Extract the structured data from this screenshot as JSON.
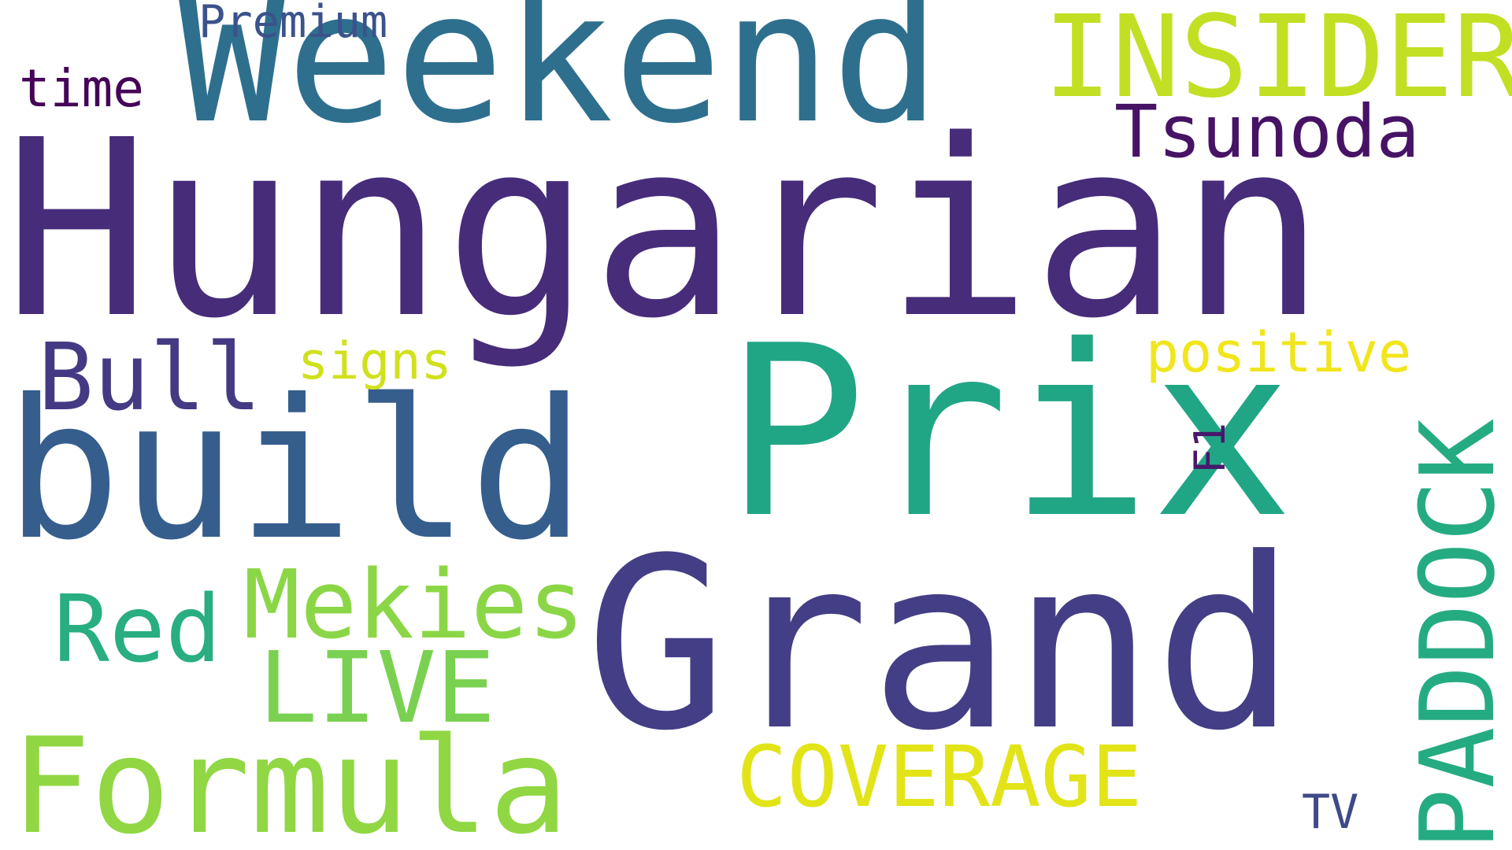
{
  "words": [
    {
      "key": "hungarian",
      "text": "Hungarian",
      "color": "#472c7a",
      "orientation": "horizontal"
    },
    {
      "key": "grand",
      "text": "Grand",
      "color": "#433e85",
      "orientation": "horizontal"
    },
    {
      "key": "prix",
      "text": "Prix",
      "color": "#21a685",
      "orientation": "horizontal"
    },
    {
      "key": "weekend",
      "text": "Weekend",
      "color": "#2e6f8e",
      "orientation": "horizontal"
    },
    {
      "key": "build",
      "text": "build",
      "color": "#355e8d",
      "orientation": "horizontal"
    },
    {
      "key": "formula",
      "text": "Formula",
      "color": "#90d743",
      "orientation": "horizontal"
    },
    {
      "key": "insider",
      "text": "INSIDER",
      "color": "#c2df23",
      "orientation": "horizontal"
    },
    {
      "key": "paddock",
      "text": "PADDOCK",
      "color": "#25ab82",
      "orientation": "vertical"
    },
    {
      "key": "mekies",
      "text": "Mekies",
      "color": "#8bd646",
      "orientation": "horizontal"
    },
    {
      "key": "live",
      "text": "LIVE",
      "color": "#7ad151",
      "orientation": "horizontal"
    },
    {
      "key": "red",
      "text": "Red",
      "color": "#28ae80",
      "orientation": "horizontal"
    },
    {
      "key": "bull",
      "text": "Bull",
      "color": "#443a83",
      "orientation": "horizontal"
    },
    {
      "key": "coverage",
      "text": "COVERAGE",
      "color": "#e2e418",
      "orientation": "horizontal"
    },
    {
      "key": "tsunoda",
      "text": "Tsunoda",
      "color": "#471365",
      "orientation": "horizontal"
    },
    {
      "key": "premium",
      "text": "Premium",
      "color": "#3b528b",
      "orientation": "horizontal"
    },
    {
      "key": "time",
      "text": "time",
      "color": "#450457",
      "orientation": "horizontal"
    },
    {
      "key": "signs",
      "text": "signs",
      "color": "#d0e11c",
      "orientation": "horizontal"
    },
    {
      "key": "positive",
      "text": "positive",
      "color": "#f1e51d",
      "orientation": "horizontal"
    },
    {
      "key": "f1",
      "text": "F1",
      "color": "#48186a",
      "orientation": "vertical"
    },
    {
      "key": "tv",
      "text": "TV",
      "color": "#3e4989",
      "orientation": "horizontal"
    }
  ]
}
